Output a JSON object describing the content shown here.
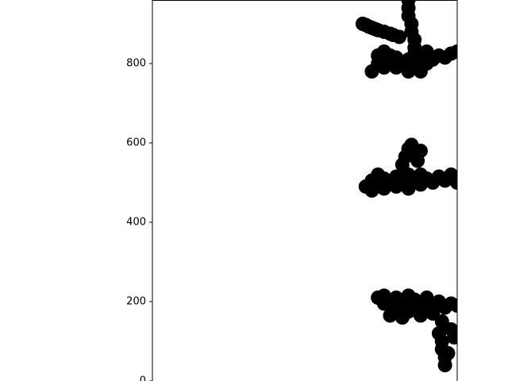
{
  "chart_data": {
    "type": "scatter",
    "title": "",
    "xlabel": "",
    "ylabel": "",
    "ylim": [
      0,
      960
    ],
    "y_ticks": [
      0,
      200,
      400,
      600,
      800
    ],
    "y_tick_labels": [
      "0",
      "200",
      "400",
      "600",
      "800"
    ],
    "x_ticks_visible": false,
    "grid": false,
    "marker_color": "#000000",
    "description_of_clusters_note": null,
    "series": [
      {
        "points": [
          [
            0.69,
            900
          ],
          [
            0.7,
            897
          ],
          [
            0.71,
            893
          ],
          [
            0.72,
            890
          ],
          [
            0.73,
            887
          ],
          [
            0.74,
            884
          ],
          [
            0.76,
            880
          ],
          [
            0.78,
            875
          ],
          [
            0.79,
            872
          ],
          [
            0.81,
            867
          ],
          [
            0.84,
            960
          ],
          [
            0.84,
            940
          ],
          [
            0.84,
            920
          ],
          [
            0.85,
            900
          ],
          [
            0.85,
            880
          ],
          [
            0.86,
            860
          ],
          [
            0.86,
            840
          ],
          [
            0.72,
            780
          ],
          [
            0.74,
            800
          ],
          [
            0.74,
            820
          ],
          [
            0.76,
            790
          ],
          [
            0.76,
            830
          ],
          [
            0.78,
            800
          ],
          [
            0.78,
            820
          ],
          [
            0.8,
            790
          ],
          [
            0.8,
            815
          ],
          [
            0.82,
            800
          ],
          [
            0.84,
            780
          ],
          [
            0.84,
            810
          ],
          [
            0.86,
            800
          ],
          [
            0.86,
            825
          ],
          [
            0.88,
            780
          ],
          [
            0.88,
            810
          ],
          [
            0.9,
            800
          ],
          [
            0.9,
            830
          ],
          [
            0.92,
            810
          ],
          [
            0.94,
            820
          ],
          [
            0.96,
            815
          ],
          [
            0.98,
            825
          ],
          [
            1.0,
            830
          ],
          [
            0.7,
            490
          ],
          [
            0.72,
            480
          ],
          [
            0.72,
            505
          ],
          [
            0.74,
            495
          ],
          [
            0.74,
            520
          ],
          [
            0.76,
            485
          ],
          [
            0.76,
            510
          ],
          [
            0.78,
            500
          ],
          [
            0.8,
            490
          ],
          [
            0.8,
            515
          ],
          [
            0.82,
            500
          ],
          [
            0.84,
            485
          ],
          [
            0.84,
            520
          ],
          [
            0.86,
            505
          ],
          [
            0.88,
            495
          ],
          [
            0.88,
            520
          ],
          [
            0.9,
            510
          ],
          [
            0.92,
            500
          ],
          [
            0.94,
            515
          ],
          [
            0.96,
            505
          ],
          [
            0.98,
            520
          ],
          [
            1.0,
            500
          ],
          [
            0.82,
            545
          ],
          [
            0.83,
            565
          ],
          [
            0.84,
            585
          ],
          [
            0.85,
            595
          ],
          [
            0.86,
            575
          ],
          [
            0.88,
            580
          ],
          [
            0.87,
            555
          ],
          [
            0.74,
            210
          ],
          [
            0.76,
            195
          ],
          [
            0.76,
            215
          ],
          [
            0.78,
            165
          ],
          [
            0.78,
            200
          ],
          [
            0.8,
            185
          ],
          [
            0.8,
            210
          ],
          [
            0.82,
            160
          ],
          [
            0.82,
            195
          ],
          [
            0.84,
            175
          ],
          [
            0.84,
            215
          ],
          [
            0.86,
            185
          ],
          [
            0.86,
            205
          ],
          [
            0.88,
            165
          ],
          [
            0.88,
            195
          ],
          [
            0.9,
            180
          ],
          [
            0.9,
            210
          ],
          [
            0.92,
            190
          ],
          [
            0.92,
            170
          ],
          [
            0.94,
            200
          ],
          [
            0.95,
            150
          ],
          [
            0.96,
            185
          ],
          [
            0.98,
            195
          ],
          [
            1.0,
            190
          ],
          [
            0.94,
            120
          ],
          [
            0.95,
            100
          ],
          [
            0.95,
            80
          ],
          [
            0.96,
            60
          ],
          [
            0.96,
            40
          ],
          [
            0.97,
            70
          ],
          [
            0.98,
            130
          ],
          [
            0.99,
            110
          ]
        ]
      }
    ]
  }
}
